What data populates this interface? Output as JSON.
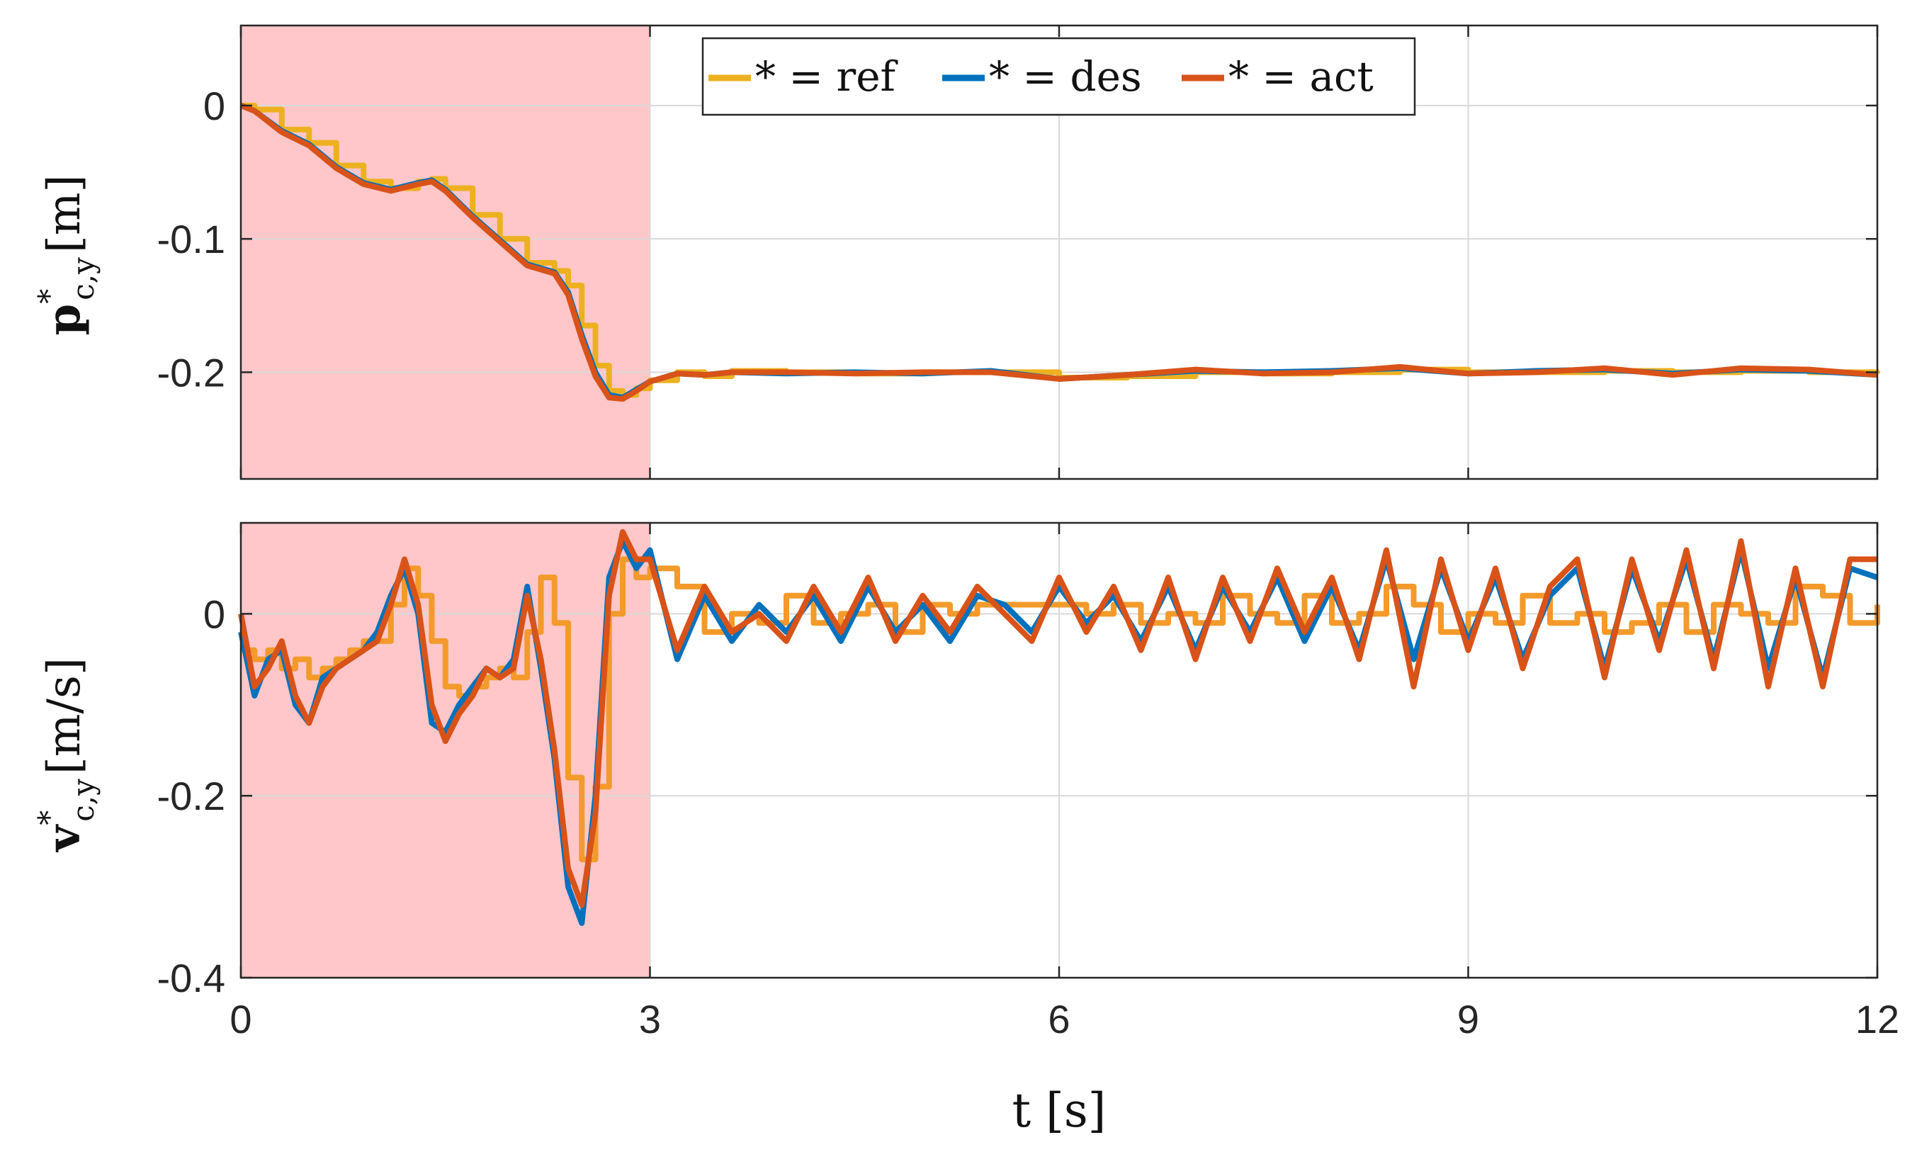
{
  "chart_data": [
    {
      "type": "line",
      "title": "",
      "ylabel": "p*c,y [m]",
      "ylabel_main": "p",
      "ylabel_sup": "*",
      "ylabel_sub": "c,y",
      "ylabel_unit": "[m]",
      "xlim": [
        0,
        12
      ],
      "ylim": [
        -0.28,
        0.06
      ],
      "x_ticks": [
        0,
        3,
        6,
        9,
        12
      ],
      "y_ticks": [
        -0.2,
        -0.1,
        0
      ],
      "y_tick_labels": [
        "-0.2",
        "-0.1",
        "0"
      ],
      "grid": true,
      "shaded_region": {
        "x": [
          0,
          3
        ],
        "color": "#ffc7c9"
      },
      "legend": {
        "placement": "top-center",
        "entries": [
          {
            "label": "* = ref",
            "color": "#edb120"
          },
          {
            "label": "* = des",
            "color": "#0072bd"
          },
          {
            "label": "* = act",
            "color": "#d95319"
          }
        ]
      },
      "series": [
        {
          "name": "ref",
          "color": "#edb120",
          "style": "step",
          "x": [
            0,
            0.1,
            0.3,
            0.5,
            0.7,
            0.9,
            1.1,
            1.3,
            1.4,
            1.5,
            1.7,
            1.9,
            2.1,
            2.3,
            2.4,
            2.5,
            2.6,
            2.7,
            2.8,
            2.9,
            3.0,
            3.2,
            3.4,
            3.6,
            4,
            4.5,
            5,
            5.5,
            6,
            6.5,
            7,
            7.5,
            8,
            8.5,
            9,
            9.5,
            10,
            10.5,
            11,
            11.5,
            12
          ],
          "y": [
            0,
            -0.003,
            -0.018,
            -0.028,
            -0.045,
            -0.057,
            -0.062,
            -0.057,
            -0.055,
            -0.062,
            -0.082,
            -0.1,
            -0.118,
            -0.124,
            -0.135,
            -0.165,
            -0.195,
            -0.214,
            -0.217,
            -0.212,
            -0.206,
            -0.2,
            -0.203,
            -0.199,
            -0.2,
            -0.201,
            -0.2,
            -0.2,
            -0.204,
            -0.203,
            -0.2,
            -0.201,
            -0.2,
            -0.198,
            -0.2,
            -0.2,
            -0.199,
            -0.2,
            -0.199,
            -0.2,
            -0.201
          ]
        },
        {
          "name": "des",
          "color": "#0072bd",
          "style": "line",
          "x": [
            0,
            0.1,
            0.3,
            0.5,
            0.7,
            0.9,
            1.1,
            1.3,
            1.4,
            1.5,
            1.7,
            1.9,
            2.1,
            2.3,
            2.4,
            2.5,
            2.6,
            2.7,
            2.8,
            2.9,
            3.0,
            3.2,
            3.4,
            3.6,
            4,
            4.5,
            5,
            5.5,
            6,
            6.5,
            7,
            7.5,
            8,
            8.5,
            9,
            9.5,
            10,
            10.5,
            11,
            11.5,
            12
          ],
          "y": [
            0,
            -0.004,
            -0.019,
            -0.029,
            -0.046,
            -0.058,
            -0.063,
            -0.058,
            -0.056,
            -0.063,
            -0.083,
            -0.101,
            -0.119,
            -0.125,
            -0.14,
            -0.172,
            -0.2,
            -0.217,
            -0.219,
            -0.213,
            -0.207,
            -0.201,
            -0.202,
            -0.2,
            -0.201,
            -0.2,
            -0.201,
            -0.199,
            -0.205,
            -0.202,
            -0.199,
            -0.2,
            -0.199,
            -0.197,
            -0.201,
            -0.199,
            -0.198,
            -0.201,
            -0.198,
            -0.199,
            -0.202
          ]
        },
        {
          "name": "act",
          "color": "#d95319",
          "style": "line",
          "x": [
            0,
            0.1,
            0.3,
            0.5,
            0.7,
            0.9,
            1.1,
            1.3,
            1.4,
            1.5,
            1.7,
            1.9,
            2.1,
            2.3,
            2.4,
            2.5,
            2.6,
            2.7,
            2.8,
            2.9,
            3.0,
            3.2,
            3.4,
            3.6,
            4,
            4.5,
            5,
            5.5,
            6,
            6.5,
            7,
            7.5,
            8,
            8.5,
            9,
            9.5,
            10,
            10.5,
            11,
            11.5,
            12
          ],
          "y": [
            0,
            -0.004,
            -0.02,
            -0.03,
            -0.047,
            -0.059,
            -0.064,
            -0.059,
            -0.057,
            -0.064,
            -0.084,
            -0.102,
            -0.12,
            -0.126,
            -0.142,
            -0.175,
            -0.203,
            -0.219,
            -0.22,
            -0.214,
            -0.207,
            -0.201,
            -0.202,
            -0.2,
            -0.2,
            -0.201,
            -0.2,
            -0.2,
            -0.205,
            -0.202,
            -0.198,
            -0.201,
            -0.2,
            -0.196,
            -0.201,
            -0.2,
            -0.197,
            -0.202,
            -0.197,
            -0.198,
            -0.202
          ]
        }
      ]
    },
    {
      "type": "line",
      "title": "",
      "xlabel": "t [s]",
      "ylabel": "v*c,y [m/s]",
      "ylabel_main": "v",
      "ylabel_sup": "*",
      "ylabel_sub": "c,y",
      "ylabel_unit": "[m/s]",
      "xlim": [
        0,
        12
      ],
      "ylim": [
        -0.4,
        0.1
      ],
      "x_ticks": [
        0,
        3,
        6,
        9,
        12
      ],
      "x_tick_labels": [
        "0",
        "3",
        "6",
        "9",
        "12"
      ],
      "y_ticks": [
        -0.4,
        -0.2,
        0
      ],
      "y_tick_labels": [
        "-0.4",
        "-0.2",
        "0"
      ],
      "grid": true,
      "shaded_region": {
        "x": [
          0,
          3
        ],
        "color": "#ffc7c9"
      },
      "series": [
        {
          "name": "ref",
          "color": "#f39a2b",
          "style": "step",
          "x": [
            0,
            0.1,
            0.2,
            0.3,
            0.4,
            0.5,
            0.6,
            0.7,
            0.8,
            0.9,
            1.0,
            1.1,
            1.2,
            1.3,
            1.4,
            1.5,
            1.6,
            1.7,
            1.8,
            1.9,
            2.0,
            2.1,
            2.2,
            2.3,
            2.4,
            2.5,
            2.6,
            2.7,
            2.8,
            2.9,
            3.0,
            3.2,
            3.4,
            3.6,
            3.8,
            4.0,
            4.2,
            4.4,
            4.6,
            4.8,
            5.0,
            5.2,
            5.4,
            5.6,
            5.8,
            6.0,
            6.2,
            6.4,
            6.6,
            6.8,
            7.0,
            7.2,
            7.4,
            7.6,
            7.8,
            8.0,
            8.2,
            8.4,
            8.6,
            8.8,
            9.0,
            9.2,
            9.4,
            9.6,
            9.8,
            10.0,
            10.2,
            10.4,
            10.6,
            10.8,
            11.0,
            11.2,
            11.4,
            11.6,
            11.8,
            12.0
          ],
          "y": [
            -0.04,
            -0.05,
            -0.04,
            -0.06,
            -0.05,
            -0.07,
            -0.06,
            -0.05,
            -0.04,
            -0.03,
            -0.03,
            0.01,
            0.05,
            0.02,
            -0.03,
            -0.08,
            -0.09,
            -0.08,
            -0.07,
            -0.06,
            -0.07,
            -0.02,
            0.04,
            -0.01,
            -0.18,
            -0.27,
            -0.19,
            0.0,
            0.06,
            0.04,
            0.05,
            0.03,
            -0.02,
            0.0,
            -0.01,
            0.02,
            -0.01,
            0.0,
            0.01,
            -0.02,
            0.01,
            0.0,
            0.01,
            0.01,
            0.01,
            0.01,
            0.0,
            0.01,
            -0.01,
            0.0,
            -0.01,
            0.02,
            0.0,
            -0.01,
            0.02,
            -0.01,
            0.0,
            0.03,
            0.01,
            -0.02,
            0.0,
            -0.01,
            0.02,
            -0.01,
            0.0,
            -0.02,
            -0.01,
            0.01,
            -0.02,
            0.01,
            0.0,
            -0.01,
            0.03,
            0.02,
            -0.01,
            0.01
          ]
        },
        {
          "name": "des",
          "color": "#0072bd",
          "style": "line",
          "x": [
            0,
            0.1,
            0.2,
            0.3,
            0.4,
            0.5,
            0.6,
            0.7,
            0.8,
            0.9,
            1.0,
            1.1,
            1.2,
            1.3,
            1.4,
            1.5,
            1.6,
            1.7,
            1.8,
            1.9,
            2.0,
            2.1,
            2.2,
            2.3,
            2.4,
            2.5,
            2.6,
            2.7,
            2.8,
            2.9,
            3.0,
            3.2,
            3.4,
            3.6,
            3.8,
            4.0,
            4.2,
            4.4,
            4.6,
            4.8,
            5.0,
            5.2,
            5.4,
            5.6,
            5.8,
            6.0,
            6.2,
            6.4,
            6.6,
            6.8,
            7.0,
            7.2,
            7.4,
            7.6,
            7.8,
            8.0,
            8.2,
            8.4,
            8.6,
            8.8,
            9.0,
            9.2,
            9.4,
            9.6,
            9.8,
            10.0,
            10.2,
            10.4,
            10.6,
            10.8,
            11.0,
            11.2,
            11.4,
            11.6,
            11.8,
            12.0
          ],
          "y": [
            -0.02,
            -0.09,
            -0.05,
            -0.04,
            -0.1,
            -0.12,
            -0.07,
            -0.06,
            -0.05,
            -0.04,
            -0.02,
            0.02,
            0.05,
            0.0,
            -0.12,
            -0.13,
            -0.1,
            -0.08,
            -0.06,
            -0.07,
            -0.05,
            0.03,
            -0.06,
            -0.16,
            -0.3,
            -0.34,
            -0.2,
            0.04,
            0.08,
            0.05,
            0.07,
            -0.05,
            0.02,
            -0.03,
            0.01,
            -0.02,
            0.02,
            -0.03,
            0.03,
            -0.02,
            0.01,
            -0.03,
            0.02,
            0.01,
            -0.02,
            0.03,
            -0.01,
            0.02,
            -0.03,
            0.03,
            -0.04,
            0.03,
            -0.02,
            0.04,
            -0.03,
            0.03,
            -0.04,
            0.06,
            -0.05,
            0.05,
            -0.03,
            0.04,
            -0.05,
            0.02,
            0.05,
            -0.06,
            0.05,
            -0.03,
            0.06,
            -0.05,
            0.07,
            -0.06,
            0.04,
            -0.07,
            0.05,
            0.04
          ]
        },
        {
          "name": "act",
          "color": "#d95319",
          "style": "line",
          "x": [
            0,
            0.1,
            0.2,
            0.3,
            0.4,
            0.5,
            0.6,
            0.7,
            0.8,
            0.9,
            1.0,
            1.1,
            1.2,
            1.3,
            1.4,
            1.5,
            1.6,
            1.7,
            1.8,
            1.9,
            2.0,
            2.1,
            2.2,
            2.3,
            2.4,
            2.5,
            2.6,
            2.7,
            2.8,
            2.9,
            3.0,
            3.2,
            3.4,
            3.6,
            3.8,
            4.0,
            4.2,
            4.4,
            4.6,
            4.8,
            5.0,
            5.2,
            5.4,
            5.6,
            5.8,
            6.0,
            6.2,
            6.4,
            6.6,
            6.8,
            7.0,
            7.2,
            7.4,
            7.6,
            7.8,
            8.0,
            8.2,
            8.4,
            8.6,
            8.8,
            9.0,
            9.2,
            9.4,
            9.6,
            9.8,
            10.0,
            10.2,
            10.4,
            10.6,
            10.8,
            11.0,
            11.2,
            11.4,
            11.6,
            11.8,
            12.0
          ],
          "y": [
            0.0,
            -0.08,
            -0.06,
            -0.03,
            -0.09,
            -0.12,
            -0.08,
            -0.06,
            -0.05,
            -0.04,
            -0.03,
            0.01,
            0.06,
            0.01,
            -0.1,
            -0.14,
            -0.11,
            -0.09,
            -0.06,
            -0.07,
            -0.06,
            0.02,
            -0.05,
            -0.15,
            -0.28,
            -0.32,
            -0.22,
            0.02,
            0.09,
            0.06,
            0.06,
            -0.04,
            0.03,
            -0.02,
            0.0,
            -0.03,
            0.03,
            -0.02,
            0.04,
            -0.03,
            0.02,
            -0.02,
            0.03,
            0.0,
            -0.03,
            0.04,
            -0.02,
            0.03,
            -0.04,
            0.04,
            -0.05,
            0.04,
            -0.03,
            0.05,
            -0.02,
            0.04,
            -0.05,
            0.07,
            -0.08,
            0.06,
            -0.04,
            0.05,
            -0.06,
            0.03,
            0.06,
            -0.07,
            0.06,
            -0.04,
            0.07,
            -0.06,
            0.08,
            -0.08,
            0.05,
            -0.08,
            0.06,
            0.06
          ]
        }
      ]
    }
  ]
}
